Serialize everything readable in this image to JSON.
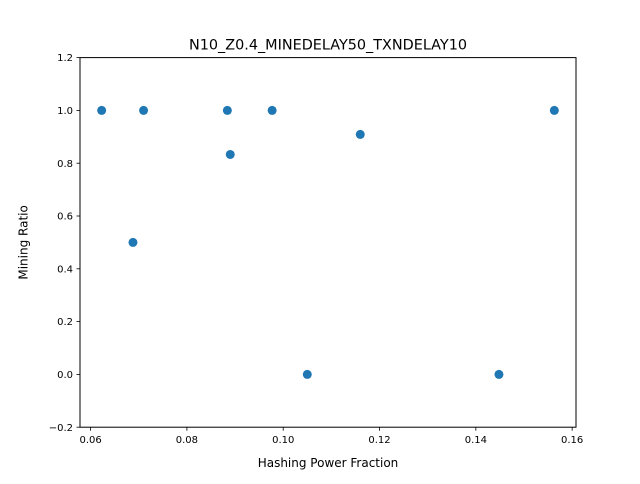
{
  "chart_data": {
    "type": "scatter",
    "title": "N10_Z0.4_MINEDELAY50_TXNDELAY10",
    "xlabel": "Hashing Power Fraction",
    "ylabel": "Mining Ratio",
    "xlim": [
      0.0578,
      0.1608
    ],
    "ylim": [
      -0.2,
      1.2
    ],
    "xticks": [
      "0.06",
      "0.08",
      "0.10",
      "0.12",
      "0.14",
      "0.16"
    ],
    "xtick_values": [
      0.06,
      0.08,
      0.1,
      0.12,
      0.14,
      0.16
    ],
    "yticks": [
      "−0.2",
      "0.0",
      "0.2",
      "0.4",
      "0.6",
      "0.8",
      "1.0",
      "1.2"
    ],
    "ytick_values": [
      -0.2,
      0.0,
      0.2,
      0.4,
      0.6,
      0.8,
      1.0,
      1.2
    ],
    "grid": false,
    "marker_color": "#1f77b4",
    "points": [
      {
        "x": 0.0623,
        "y": 1.0
      },
      {
        "x": 0.0688,
        "y": 0.5
      },
      {
        "x": 0.071,
        "y": 1.0
      },
      {
        "x": 0.0884,
        "y": 1.0
      },
      {
        "x": 0.089,
        "y": 0.833
      },
      {
        "x": 0.0977,
        "y": 1.0
      },
      {
        "x": 0.105,
        "y": 0.0
      },
      {
        "x": 0.116,
        "y": 0.909
      },
      {
        "x": 0.1448,
        "y": 0.0
      },
      {
        "x": 0.1563,
        "y": 1.0
      }
    ]
  }
}
